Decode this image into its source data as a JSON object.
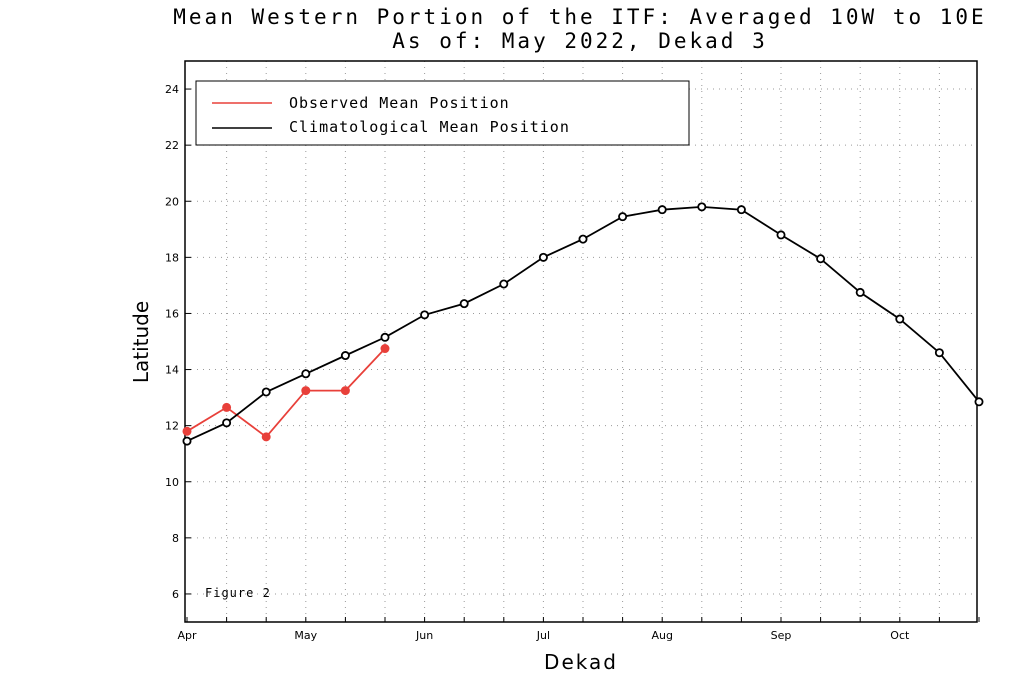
{
  "chart_data": {
    "type": "line",
    "title": "Mean Western Portion of the ITF: Averaged 10W to 10E",
    "subtitle": "As of: May 2022, Dekad 3",
    "xlabel": "Dekad",
    "ylabel": "Latitude",
    "ylim": [
      5,
      25
    ],
    "yticks": [
      6,
      8,
      10,
      12,
      14,
      16,
      18,
      20,
      22,
      24
    ],
    "x_tick_labels": [
      "Apr",
      "May",
      "Jun",
      "Jul",
      "Aug",
      "Sep",
      "Oct"
    ],
    "grid": true,
    "legend_placement": "top-left",
    "annotation": "Figure 2",
    "series": [
      {
        "name": "Observed Mean Position",
        "color": "#e8403a",
        "marker": "filled-circle",
        "values": [
          11.8,
          12.65,
          11.6,
          13.25,
          13.25,
          14.75
        ]
      },
      {
        "name": "Climatological Mean Position",
        "color": "#000000",
        "marker": "open-circle",
        "values": [
          11.45,
          12.1,
          13.2,
          13.85,
          14.5,
          15.15,
          15.95,
          16.35,
          17.05,
          18.0,
          18.65,
          19.45,
          19.7,
          19.8,
          19.7,
          18.8,
          17.95,
          16.75,
          15.8,
          14.6,
          12.85
        ]
      }
    ]
  }
}
